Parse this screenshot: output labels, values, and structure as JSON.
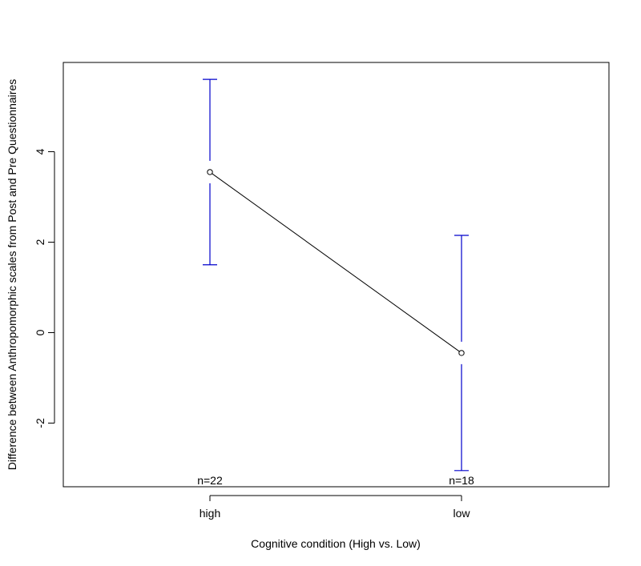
{
  "chart_data": {
    "type": "line",
    "title": "",
    "xlabel": "Cognitive condition (High vs. Low)",
    "ylabel": "Difference between Anthropomorphic scales from Post and Pre Questionnaires",
    "categories": [
      "high",
      "low"
    ],
    "means": [
      3.55,
      -0.45
    ],
    "ci_lower": [
      1.5,
      -3.05
    ],
    "ci_upper": [
      5.6,
      2.15
    ],
    "counts": [
      "n=22",
      "n=18"
    ],
    "yticks": [
      -2,
      0,
      2,
      4
    ],
    "ytick_labels": [
      "-2",
      "0",
      "2",
      "4"
    ],
    "ylim": [
      -3.4,
      6.0
    ],
    "grid": false,
    "line_color": "#000000",
    "errorbar_color": "#0000cc"
  }
}
